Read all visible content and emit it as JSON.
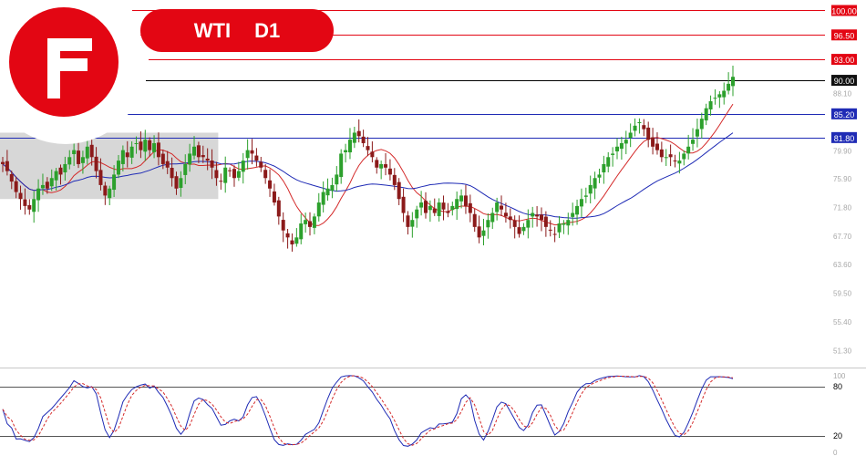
{
  "brand": {
    "logo_letter": "F",
    "logo_color": "#e30613"
  },
  "header": {
    "symbol": "WTI",
    "timeframe": "D1"
  },
  "colors": {
    "accent": "#e30613",
    "bull": "#2ca02c",
    "bear": "#8b1a1a",
    "ma_fast": "#d42a2a",
    "ma_slow": "#1f2bb5",
    "resistance": "#e30613",
    "support": "#1f2bb5",
    "range_box": "#d0d0d0"
  },
  "chart_data": {
    "type": "candlestick",
    "symbol": "WTI",
    "timeframe": "D1",
    "price_axis": {
      "range": [
        49.0,
        101.5
      ],
      "tick_labels": [
        "100.00",
        "96.50",
        "93.00",
        "90.00",
        "88.10",
        "85.20",
        "81.80",
        "79.90",
        "75.90",
        "71.80",
        "67.70",
        "63.60",
        "59.50",
        "55.40",
        "51.30"
      ]
    },
    "levels": [
      {
        "value": 100.0,
        "label": "100.00",
        "color": "#e30613",
        "style": "resistance"
      },
      {
        "value": 96.5,
        "label": "96.50",
        "color": "#e30613",
        "style": "resistance"
      },
      {
        "value": 93.0,
        "label": "93.00",
        "color": "#e30613",
        "style": "resistance"
      },
      {
        "value": 90.0,
        "label": "90.00",
        "color": "#000000",
        "style": "current"
      },
      {
        "value": 85.2,
        "label": "85.20",
        "color": "#1f2bb5",
        "style": "support"
      },
      {
        "value": 81.8,
        "label": "81.80",
        "color": "#1f2bb5",
        "style": "support"
      }
    ],
    "range_box": {
      "from_index": 0,
      "to_index": 48,
      "top": 82.5,
      "bottom": 73.0
    },
    "closes": [
      78,
      77,
      75.5,
      74,
      73,
      72,
      71.5,
      73,
      74.5,
      75,
      74.5,
      76,
      77,
      76.5,
      78,
      79,
      80,
      78,
      79,
      80.5,
      79,
      77,
      75,
      73.5,
      74.5,
      76.5,
      78.5,
      80,
      79,
      80.5,
      81,
      80,
      81.5,
      80,
      81,
      79,
      78,
      77.5,
      76,
      74.5,
      76,
      78,
      79.5,
      80.5,
      79,
      79,
      78.5,
      77.5,
      76,
      75.5,
      77.5,
      77,
      76,
      77,
      78.5,
      80,
      79.5,
      78.5,
      77.5,
      76,
      74.5,
      72.5,
      70.5,
      68.5,
      67.5,
      66.5,
      67.5,
      69.5,
      70,
      69,
      70.5,
      72.5,
      74,
      74.5,
      75,
      76.5,
      79.5,
      80,
      81.5,
      82.5,
      82,
      81,
      80,
      79,
      77.5,
      78,
      77.5,
      76.5,
      75,
      73,
      71,
      69,
      70,
      71.5,
      72.5,
      71,
      72,
      71,
      72.5,
      71.5,
      71,
      72,
      73,
      73.5,
      72,
      71,
      69,
      67.5,
      68.5,
      70,
      71,
      72.5,
      71.5,
      70.5,
      70,
      69,
      68,
      69,
      70,
      71,
      70.5,
      70,
      69,
      68.5,
      68,
      69.5,
      69.5,
      70,
      71,
      72,
      73,
      73.5,
      75,
      76,
      76.5,
      78,
      79,
      79.5,
      80.5,
      81,
      81.5,
      82.5,
      83.5,
      84,
      83,
      81.5,
      80.5,
      80,
      79,
      79,
      79,
      78.5,
      78.5,
      79.5,
      80.5,
      81.5,
      83,
      84.5,
      86,
      87,
      87.5,
      88,
      88.5,
      89.5,
      90.5
    ],
    "series": [
      {
        "name": "",
        "type": "ma",
        "period": 10,
        "color": "#d42a2a"
      },
      {
        "name": "",
        "type": "ma",
        "period": 30,
        "color": "#1f2bb5"
      }
    ],
    "oscillator": {
      "type": "stochastic",
      "levels": [
        80,
        20
      ],
      "tick_labels": [
        "100",
        "80",
        "20",
        "0"
      ],
      "range": [
        0,
        100
      ],
      "main_color": "#1f2bb5",
      "signal_color": "#d42a2a"
    }
  }
}
